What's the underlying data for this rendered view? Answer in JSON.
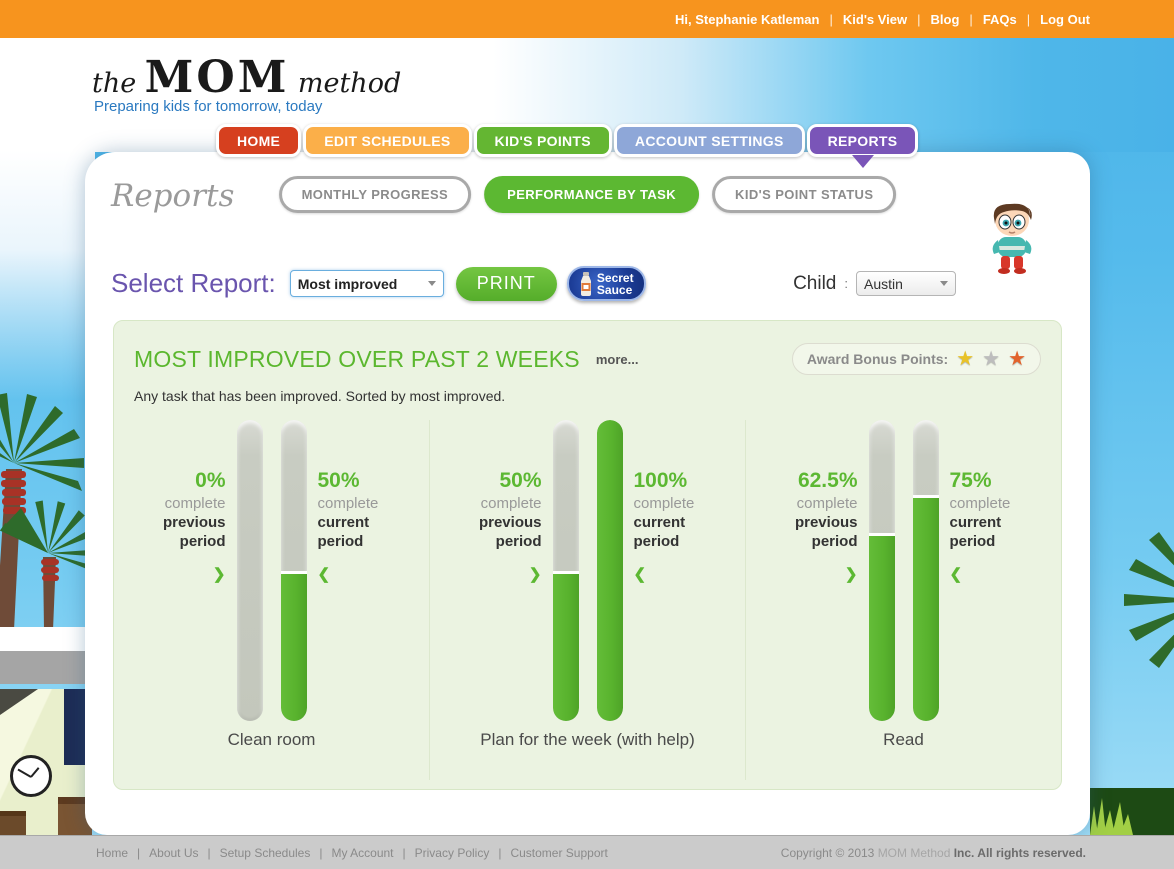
{
  "topbar": {
    "greeting": "Hi, Stephanie Katleman",
    "links": [
      "Kid's View",
      "Blog",
      "FAQs",
      "Log Out"
    ],
    "separator": "|",
    "bg_color": "#f7941e"
  },
  "header": {
    "logo_the": "the",
    "logo_mom": "MOM",
    "logo_method": "method",
    "tagline": "Preparing kids for tomorrow, today"
  },
  "nav": {
    "active_tab": "REPORTS",
    "tabs": [
      {
        "label": "HOME",
        "color": "#d6401f"
      },
      {
        "label": "EDIT SCHEDULES",
        "color": "#fbaf49"
      },
      {
        "label": "KID'S POINTS",
        "color": "#64b632"
      },
      {
        "label": "ACCOUNT SETTINGS",
        "color": "#8ea7d8"
      },
      {
        "label": "REPORTS",
        "color": "#7a55b8"
      }
    ]
  },
  "page": {
    "title": "Reports",
    "subtabs": [
      {
        "label": "MONTHLY PROGRESS"
      },
      {
        "label": "PERFORMANCE BY TASK"
      },
      {
        "label": "KID'S POINT STATUS"
      }
    ],
    "active_subtab": "PERFORMANCE BY TASK",
    "active_subtab_color": "#5cb832",
    "select_report_label": "Select Report:",
    "report_select_value": "Most improved",
    "print_label": "PRINT",
    "secret_sauce_line1": "Secret",
    "secret_sauce_line2": "Sauce",
    "child_label": "Child",
    "child_colon": ":",
    "child_select_value": "Austin"
  },
  "report_panel": {
    "title": "MOST IMPROVED OVER PAST 2 WEEKS",
    "title_color": "#5bb72e",
    "more_label": "more...",
    "award_label": "Award Bonus Points:",
    "star_glyph": "★",
    "stars": [
      {
        "name": "gold-star",
        "color": "#e8c228"
      },
      {
        "name": "silver-star",
        "color": "#bdbdbd"
      },
      {
        "name": "bronze-star",
        "color": "#e2632c"
      }
    ],
    "subtitle": "Any task that has been improved. Sorted by most improved.",
    "pointer_right": "❯",
    "pointer_left": "❮"
  },
  "chart_data": {
    "type": "bar",
    "title": "MOST IMPROVED OVER PAST 2 WEEKS",
    "unit": "%",
    "ylim": [
      0,
      100
    ],
    "bar_color": "#5cb832",
    "track_color": "#c6cabf",
    "categories": [
      "Clean room",
      "Plan for the week (with help)",
      "Read"
    ],
    "series": [
      {
        "name": "previous period",
        "values": [
          0,
          50,
          62.5
        ]
      },
      {
        "name": "current period",
        "values": [
          50,
          100,
          75
        ]
      }
    ],
    "groups": [
      {
        "task": "Clean room",
        "previous": {
          "pct": "0%",
          "value": 0,
          "word1": "complete",
          "word2": "previous",
          "word3": "period"
        },
        "current": {
          "pct": "50%",
          "value": 50,
          "word1": "complete",
          "word2": "current",
          "word3": "period"
        }
      },
      {
        "task": "Plan for the week (with help)",
        "previous": {
          "pct": "50%",
          "value": 50,
          "word1": "complete",
          "word2": "previous",
          "word3": "period"
        },
        "current": {
          "pct": "100%",
          "value": 100,
          "word1": "complete",
          "word2": "current",
          "word3": "period"
        }
      },
      {
        "task": "Read",
        "previous": {
          "pct": "62.5%",
          "value": 62.5,
          "word1": "complete",
          "word2": "previous",
          "word3": "period"
        },
        "current": {
          "pct": "75%",
          "value": 75,
          "word1": "complete",
          "word2": "current",
          "word3": "period"
        }
      }
    ]
  },
  "footer": {
    "links": [
      "Home",
      "About Us",
      "Setup Schedules",
      "My Account",
      "Privacy Policy",
      "Customer Support"
    ],
    "separator": "|",
    "copyright_pre": "Copyright © 2013",
    "copyright_brand": "MOM Method",
    "copyright_post": "Inc. All rights reserved."
  }
}
